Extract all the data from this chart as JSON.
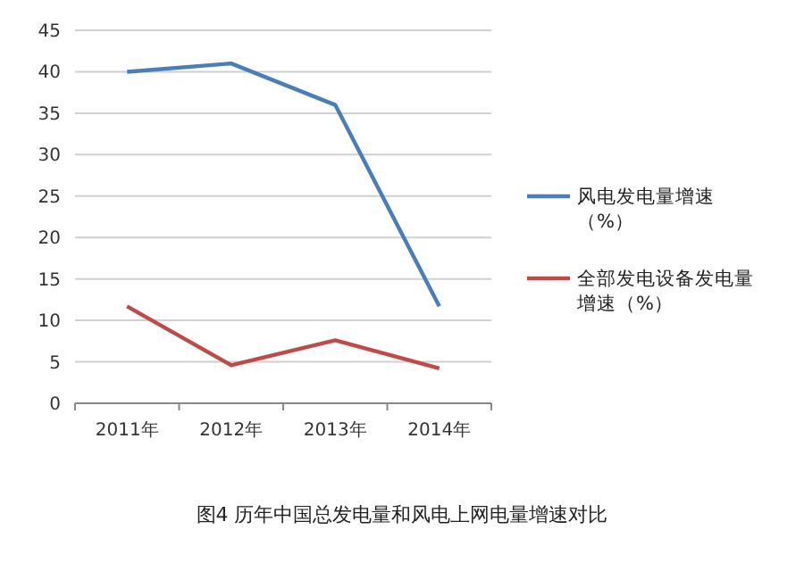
{
  "chart_data": {
    "type": "line",
    "categories": [
      "2011年",
      "2012年",
      "2013年",
      "2014年"
    ],
    "series": [
      {
        "name": "风电发电量增速（%）",
        "color": "#4a7ebb",
        "values": [
          40,
          41,
          36,
          11.7
        ]
      },
      {
        "name": "全部发电设备发电量增速（%）",
        "color": "#be4b48",
        "values": [
          11.7,
          4.6,
          7.6,
          4.2
        ]
      }
    ],
    "ylim": [
      0,
      45
    ],
    "yticks": [
      0,
      5,
      10,
      15,
      20,
      25,
      30,
      35,
      40,
      45
    ],
    "grid": "y",
    "legend": "right",
    "marker": "none",
    "line_style": "solid",
    "annotations": [
      "图4 历年中国总发电量和风电上网电量增速对比"
    ]
  }
}
